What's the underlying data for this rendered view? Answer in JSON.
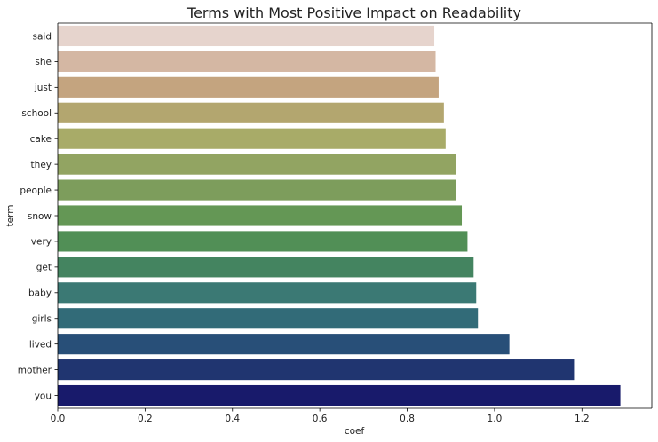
{
  "chart_data": {
    "type": "bar",
    "orientation": "horizontal",
    "title": "Terms with Most Positive Impact on Readability",
    "xlabel": "coef",
    "ylabel": "term",
    "xlim": [
      0,
      1.36
    ],
    "xticks": [
      "0.0",
      "0.2",
      "0.4",
      "0.6",
      "0.8",
      "1.0",
      "1.2"
    ],
    "grid": false,
    "categories": [
      "said",
      "she",
      "just",
      "school",
      "cake",
      "they",
      "people",
      "snow",
      "very",
      "get",
      "baby",
      "girls",
      "lived",
      "mother",
      "you"
    ],
    "values": [
      0.862,
      0.865,
      0.872,
      0.884,
      0.888,
      0.912,
      0.912,
      0.925,
      0.938,
      0.952,
      0.958,
      0.962,
      1.034,
      1.182,
      1.288
    ],
    "colors": [
      "#e6d4cd",
      "#d4b7a3",
      "#c4a47f",
      "#b3a66f",
      "#a8ab68",
      "#92a462",
      "#7d9d5c",
      "#649755",
      "#518f56",
      "#448460",
      "#3b7974",
      "#326b78",
      "#284f78",
      "#203570",
      "#181a6b"
    ]
  }
}
